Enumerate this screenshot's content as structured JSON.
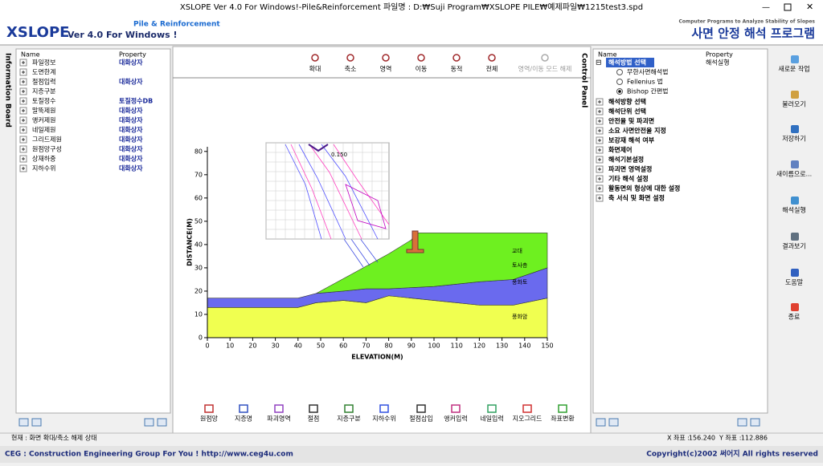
{
  "title_bar": {
    "title": "XSLOPE Ver 4.0 For Windows!-Pile&Reinforcement  파일명 : D:₩Suji Program₩XSLOPE PILE₩예제파일₩1215test3.spd"
  },
  "header": {
    "logo": "XSLOPE",
    "version": "Ver 4.0 For Windows !",
    "edition": "Pile & Reinforcement",
    "tagline": "Computer Programs to Analyze Stability of Slopes",
    "title": "사면 안정 해석 프로그램"
  },
  "info_board": {
    "label": "Information Board",
    "columns": [
      "Name",
      "Property"
    ],
    "rows": [
      {
        "name": "파일정보",
        "property": "대화상자"
      },
      {
        "name": "도면한계"
      },
      {
        "name": "절점입력",
        "property": "대화상자"
      },
      {
        "name": "지층구분"
      },
      {
        "name": "토질정수",
        "property": "토질정수DB"
      },
      {
        "name": "말뚝제원",
        "property": "대화상자"
      },
      {
        "name": "앵커제원",
        "property": "대화상자"
      },
      {
        "name": "네일제원",
        "property": "대화상자"
      },
      {
        "name": "그리드제원",
        "property": "대화상자"
      },
      {
        "name": "원점망구성",
        "property": "대화상자"
      },
      {
        "name": "상재하중",
        "property": "대화상자"
      },
      {
        "name": "지하수위",
        "property": "대화상자"
      }
    ]
  },
  "view_toolbar": [
    "확대",
    "축소",
    "영역",
    "이동",
    "동적",
    "전체",
    "영역/이동 모드 해제"
  ],
  "plot": {
    "xlabel": "ELEVATION(M)",
    "ylabel": "DISTANCE(M)",
    "xlim": [
      0,
      150
    ],
    "ylim": [
      0,
      82
    ],
    "xticks": [
      0,
      10,
      20,
      30,
      40,
      50,
      60,
      70,
      80,
      90,
      100,
      110,
      120,
      130,
      140,
      150
    ],
    "yticks": [
      0,
      10,
      20,
      30,
      40,
      50,
      60,
      70,
      80
    ],
    "layers": [
      {
        "name": "풍화암",
        "color": "#f0ff50",
        "x": [
          0,
          0,
          40,
          48,
          60,
          70,
          80,
          100,
          120,
          135,
          150,
          150
        ],
        "y": [
          0,
          13,
          13,
          15,
          16,
          15,
          18,
          16,
          14,
          14,
          17,
          0
        ]
      },
      {
        "name": "풍화토",
        "color": "#6a6aee",
        "x": [
          0,
          40,
          48,
          60,
          70,
          80,
          100,
          120,
          135,
          150,
          150,
          135,
          120,
          100,
          80,
          70,
          60,
          48,
          40,
          0
        ],
        "y": [
          17,
          17,
          19,
          20,
          21,
          21,
          22,
          24,
          25,
          30,
          17,
          14,
          14,
          16,
          18,
          15,
          16,
          15,
          13,
          13
        ]
      },
      {
        "name": "토사층",
        "color": "#6ef020",
        "x": [
          48,
          65,
          80,
          90,
          92,
          150,
          150,
          135,
          120,
          100,
          80,
          70,
          60,
          48
        ],
        "y": [
          19,
          28,
          36,
          42,
          45,
          45,
          30,
          25,
          24,
          22,
          21,
          21,
          20,
          19
        ]
      }
    ],
    "annotation": "교대",
    "inset_label": "0.150"
  },
  "draw_toolbar": [
    "원점망",
    "지층명",
    "파괴영역",
    "절점",
    "지층구분",
    "지하수위",
    "절점삽입",
    "앵커입력",
    "네일입력",
    "지오그리드",
    "좌표변환"
  ],
  "control_panel": {
    "label": "Control Panel",
    "columns": [
      "Name",
      "Property"
    ],
    "method": {
      "name": "해석방법 선택",
      "property": "해석실행",
      "options": [
        "무한사면해석법",
        "Fellenius 법",
        "Bishop 간편법"
      ],
      "selected_option": 2
    },
    "items": [
      "해석방향 선택",
      "해석단위 선택",
      "안전율 및 파괴면",
      "소요 사면안전율 지정",
      "보강재 해석 여부",
      "화면제어",
      "해석기본설정",
      "파괴면 영역설정",
      "기타 해석 설정",
      "활동면의 형상에 대한 설정",
      "축 서식 및 화면 설정"
    ]
  },
  "side_buttons": [
    "새로운 작업",
    "불러오기",
    "저장하기",
    "새이름으로...",
    "해석실행",
    "결과보기",
    "도움말",
    "종료"
  ],
  "status": {
    "mode": "현재 : 화면 확대/축소 해제 상태",
    "x_label": "X 좌표 :",
    "x": "156.240",
    "y_label": "Y 좌표 :",
    "y": "112.886"
  },
  "footer": {
    "left": "CEG : Construction Engineering Group For You ! http://www.ceg4u.com",
    "right": "Copyright(c)2002 써어지 All rights reserved"
  }
}
